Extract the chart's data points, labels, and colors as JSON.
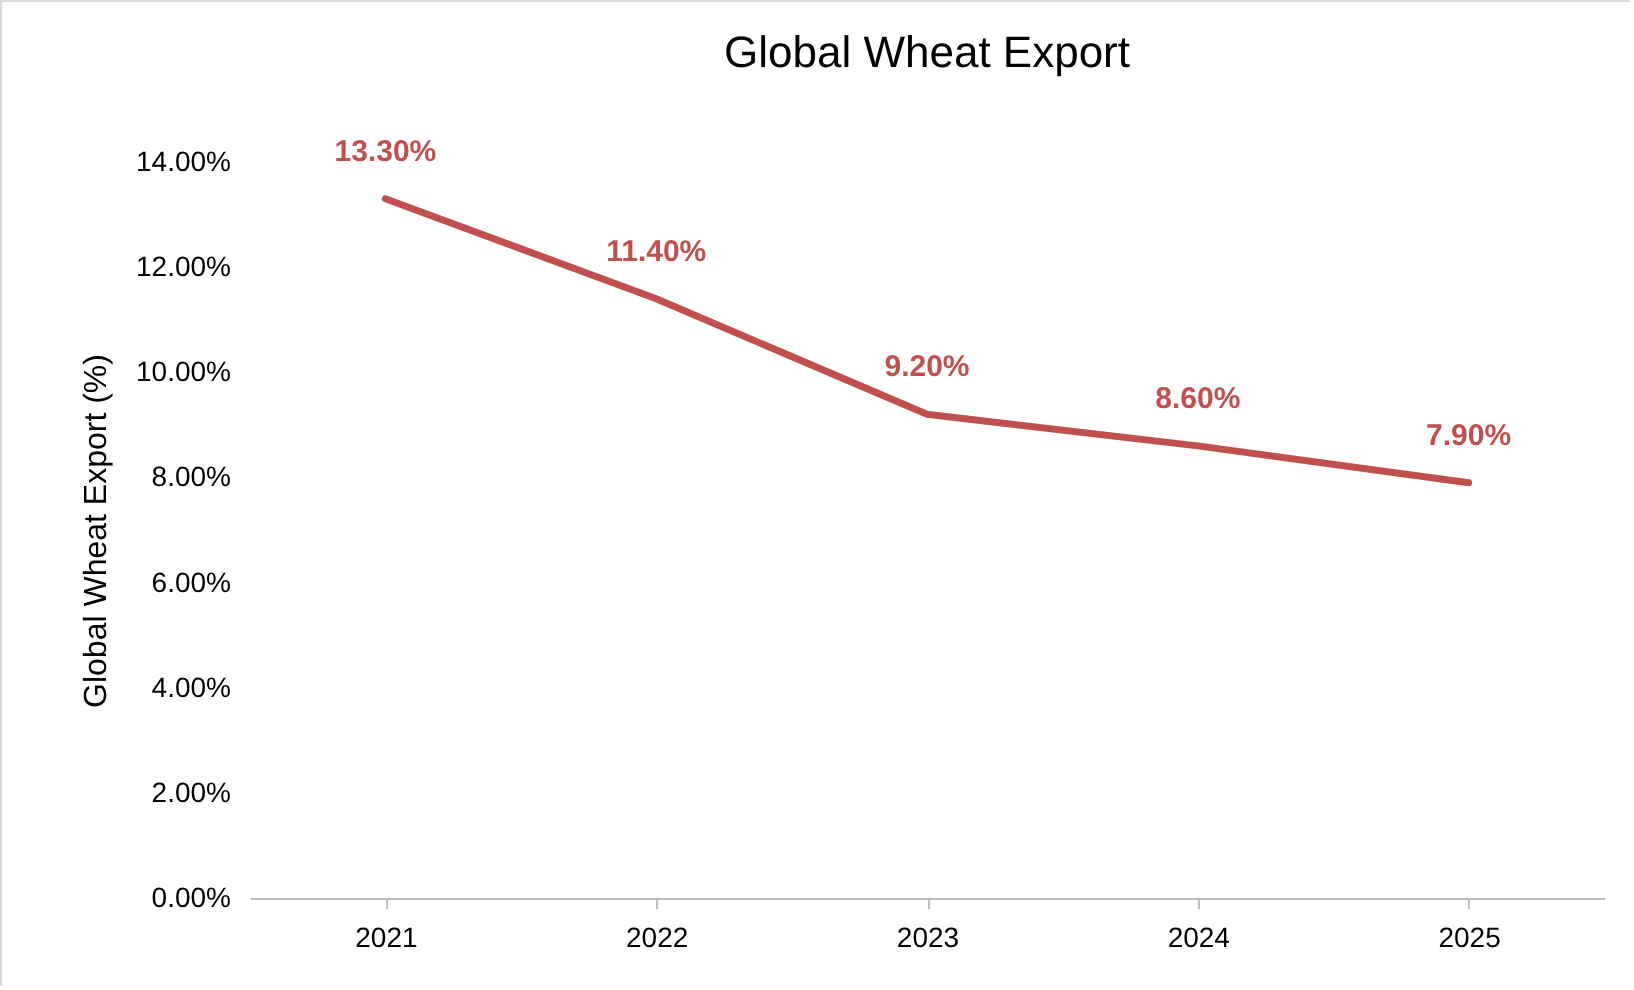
{
  "chart_data": {
    "type": "line",
    "title": "Global Wheat Export",
    "ylabel": "Global Wheat Export  (%)",
    "categories": [
      "2021",
      "2022",
      "2023",
      "2024",
      "2025"
    ],
    "values": [
      13.3,
      11.4,
      9.2,
      8.6,
      7.9
    ],
    "value_labels": [
      "13.30%",
      "11.40%",
      "9.20%",
      "8.60%",
      "7.90%"
    ],
    "color": "#c0504d",
    "ylim": [
      0,
      14
    ],
    "yticks": [
      {
        "value": 0,
        "label": "0.00%"
      },
      {
        "value": 2,
        "label": "2.00%"
      },
      {
        "value": 4,
        "label": "4.00%"
      },
      {
        "value": 6,
        "label": "6.00%"
      },
      {
        "value": 8,
        "label": "8.00%"
      },
      {
        "value": 10,
        "label": "10.00%"
      },
      {
        "value": 12,
        "label": "12.00%"
      },
      {
        "value": 14,
        "label": "14.00%"
      }
    ]
  }
}
